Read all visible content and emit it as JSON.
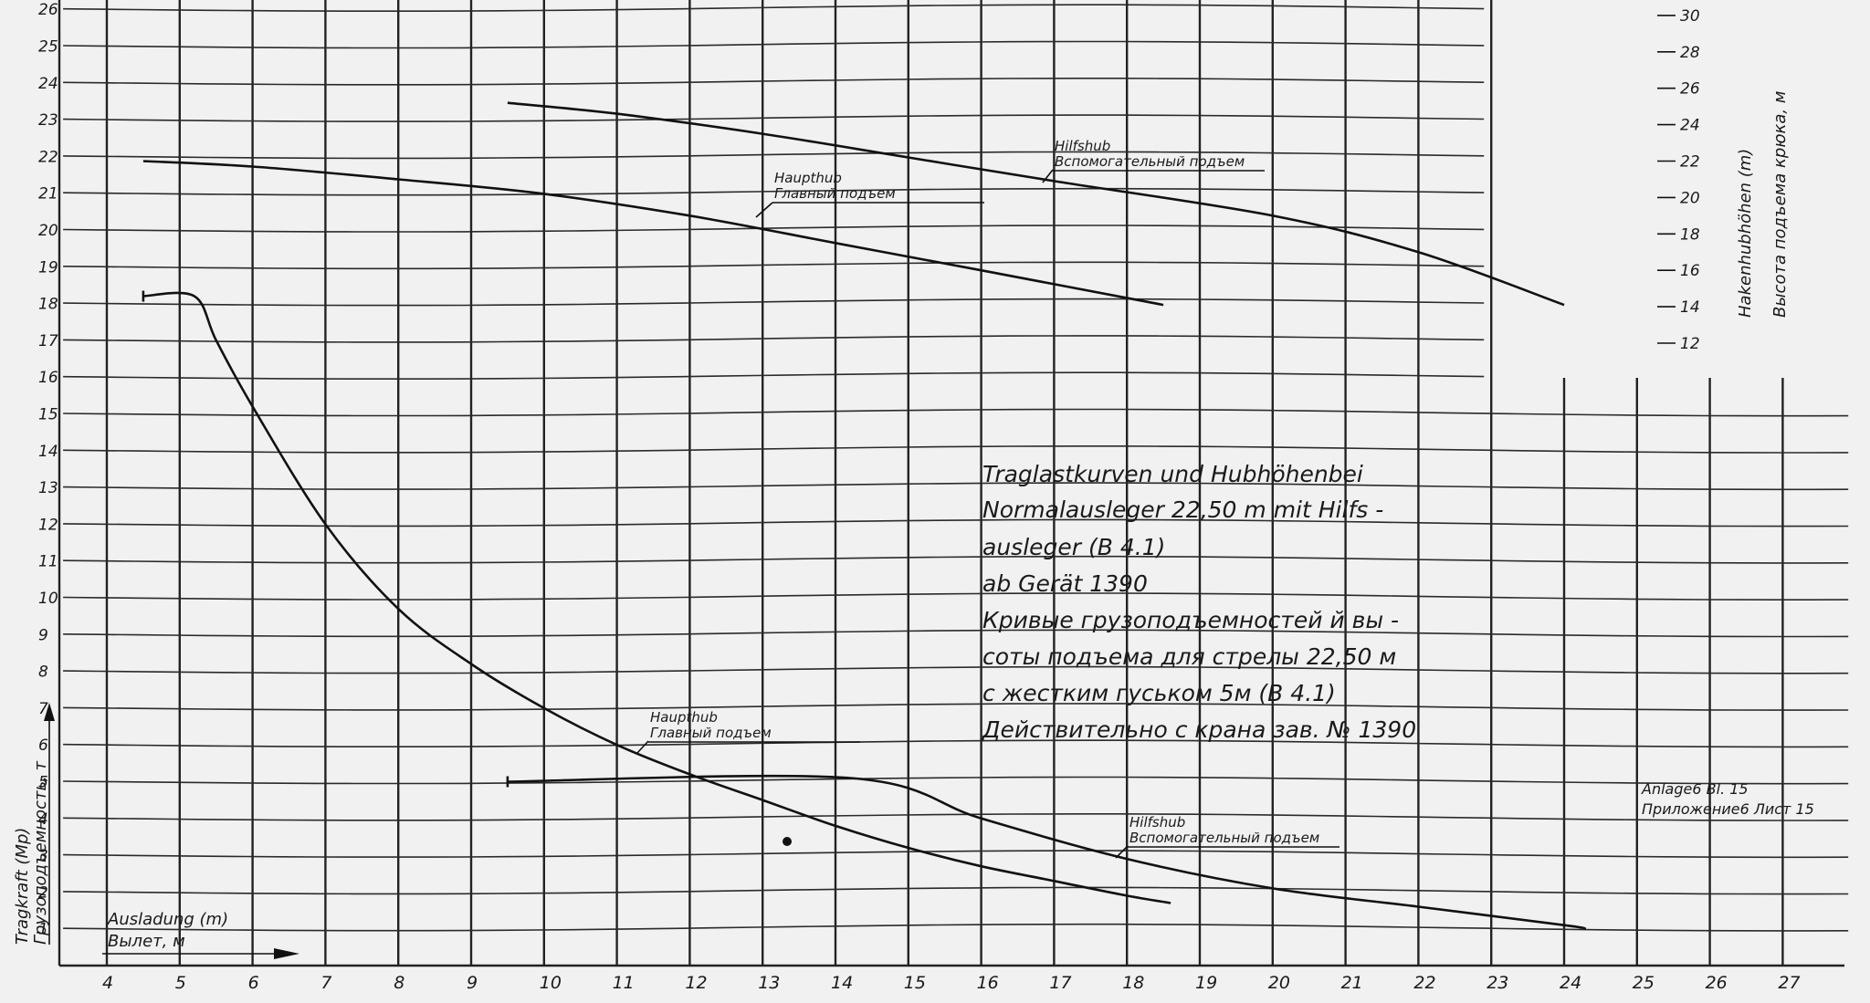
{
  "chart_data": {
    "type": "line",
    "title_lines": [
      "Traglastkurven und Hubhöhenbei",
      "Normalausleger 22,50 m mit Hilfs -",
      "ausleger (B 4.1)",
      "ab Gerät   1390",
      "Кривые грузоподъемностей й вы -",
      "соты подъема для стрелы 22,50 м",
      "с жестким гуськом 5м (В 4.1)",
      "Действительно с крана зав. № 1390"
    ],
    "xlabel": [
      "Ausladung (m)",
      "Вылет, м"
    ],
    "ylabel_left": [
      "Tragkraft (Mp)",
      "Грузоподъемность, т"
    ],
    "ylabel_right": [
      "Hakenhubhöhen (m)",
      "Высота подъема крюка, м"
    ],
    "x_ticks": [
      "4",
      "5",
      "6",
      "7",
      "8",
      "9",
      "10",
      "11",
      "12",
      "13",
      "14",
      "15",
      "16",
      "17",
      "18",
      "19",
      "20",
      "21",
      "22",
      "23",
      "24",
      "25",
      "26",
      "27"
    ],
    "y_left_ticks": [
      "1",
      "2",
      "3",
      "4",
      "5",
      "6",
      "7",
      "8",
      "9",
      "10",
      "11",
      "12",
      "13",
      "14",
      "15",
      "16",
      "17",
      "18",
      "19",
      "20",
      "21",
      "22",
      "23",
      "24",
      "25",
      "26"
    ],
    "y_right_ticks": [
      "12",
      "14",
      "16",
      "18",
      "20",
      "22",
      "24",
      "26",
      "28",
      "30"
    ],
    "xlim": [
      4,
      27
    ],
    "ylim_left": [
      0,
      26
    ],
    "ylim_right": [
      12,
      30
    ],
    "annotations": [
      {
        "lines": [
          "Haupthub",
          "Главный подъем"
        ]
      },
      {
        "lines": [
          "Hilfshub",
          "Вспомогательный подъем"
        ]
      },
      {
        "lines": [
          "Haupthub",
          "Главный подъем"
        ]
      },
      {
        "lines": [
          "Hilfshub",
          "Вспомогательный подъем"
        ]
      }
    ],
    "sheet_ref": [
      "Anlage6 Bl. 15",
      "Приложение6 Лист 15"
    ],
    "series": [
      {
        "axis": "right",
        "x": [
          4.5,
          6,
          8,
          10,
          12,
          14,
          16,
          18.5
        ],
        "y": [
          22,
          21.7,
          21.0,
          20.2,
          19.0,
          17.5,
          16.0,
          14.1
        ]
      },
      {
        "axis": "right",
        "x": [
          9.5,
          11,
          13,
          15,
          17,
          20,
          22,
          24
        ],
        "y": [
          25.2,
          24.6,
          23.5,
          22.2,
          20.9,
          19.0,
          17.0,
          14.1
        ]
      },
      {
        "axis": "left",
        "x": [
          4.5,
          5.2,
          5.5,
          6,
          7,
          8,
          9,
          10,
          11,
          12,
          13,
          14,
          15,
          16,
          17,
          18,
          18.6
        ],
        "y": [
          18.2,
          18.2,
          17.0,
          15.2,
          12.0,
          9.7,
          8.2,
          7.0,
          6.0,
          5.2,
          4.5,
          3.8,
          3.2,
          2.7,
          2.3,
          1.9,
          1.7
        ]
      },
      {
        "axis": "left",
        "x": [
          9.5,
          14.2,
          16,
          18,
          20,
          22,
          24,
          24.3
        ],
        "y": [
          5.0,
          5.1,
          4.0,
          2.9,
          2.1,
          1.6,
          1.1,
          1.0
        ]
      }
    ],
    "grid": true
  }
}
